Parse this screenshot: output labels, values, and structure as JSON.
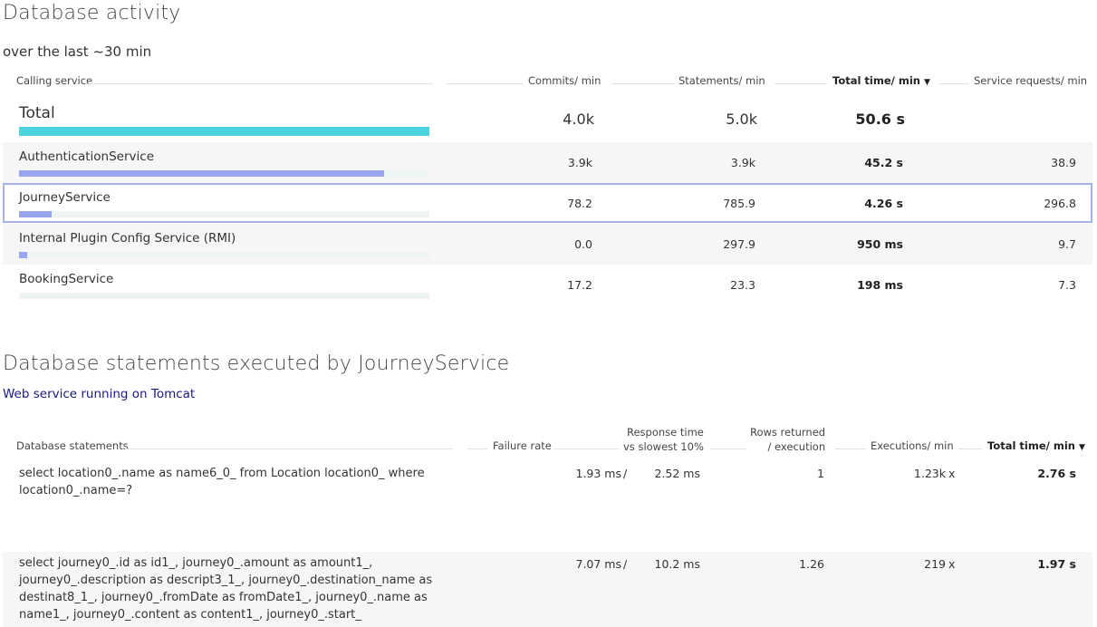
{
  "db_activity": {
    "title": "Database activity",
    "subtitle": "over the last ~30 min",
    "headers": {
      "service": "Calling service",
      "commits": "Commits/ min",
      "statements": "Statements/ min",
      "total_time": "Total time/ min",
      "requests": "Service requests/ min",
      "sort_indicator": "▼"
    },
    "total": {
      "label": "Total",
      "commits": "4.0k",
      "statements": "5.0k",
      "total_time": "50.6 s",
      "bar_fraction": 1.0
    },
    "rows": [
      {
        "name": "AuthenticationService",
        "commits": "3.9k",
        "statements": "3.9k",
        "total_time": "45.2 s",
        "requests": "38.9",
        "bar_fraction": 0.89
      },
      {
        "name": "JourneyService",
        "commits": "78.2",
        "statements": "785.9",
        "total_time": "4.26 s",
        "requests": "296.8",
        "bar_fraction": 0.08
      },
      {
        "name": "Internal Plugin Config Service (RMI)",
        "commits": "0.0",
        "statements": "297.9",
        "total_time": "950 ms",
        "requests": "9.7",
        "bar_fraction": 0.02
      },
      {
        "name": "BookingService",
        "commits": "17.2",
        "statements": "23.3",
        "total_time": "198 ms",
        "requests": "7.3",
        "bar_fraction": 0.0
      }
    ],
    "colors": {
      "total_bar": "#4dd2de",
      "service_bar": "#99a5f0",
      "selected_border": "#a6b2f0"
    }
  },
  "db_statements": {
    "title": "Database statements executed by JourneyService",
    "link": "Web service running on Tomcat",
    "headers": {
      "statements": "Database statements",
      "failure_rate": "Failure rate",
      "response_line1": "Response time",
      "response_line2": "vs slowest 10%",
      "rows_line1": "Rows returned",
      "rows_line2": "/ execution",
      "executions": "Executions/ min",
      "total_time": "Total time/ min",
      "sort_indicator": "▼"
    },
    "rows": [
      {
        "query": "select location0_.name as name6_0_ from Location location0_ where location0_.name=?",
        "response": "1.93 ms",
        "separator": "/",
        "slowest": "2.52 ms",
        "rows_returned": "1",
        "executions": "1.23k",
        "exec_unit": "x",
        "total_time": "2.76 s"
      },
      {
        "query": "select journey0_.id as id1_, journey0_.amount as amount1_, journey0_.description as descript3_1_, journey0_.destination_name as destinat8_1_, journey0_.fromDate as fromDate1_, journey0_.name as name1_, journey0_.content as content1_, journey0_.start_",
        "response": "7.07 ms",
        "separator": "/",
        "slowest": "10.2 ms",
        "rows_returned": "1.26",
        "executions": "219",
        "exec_unit": "x",
        "total_time": "1.97 s"
      }
    ]
  }
}
